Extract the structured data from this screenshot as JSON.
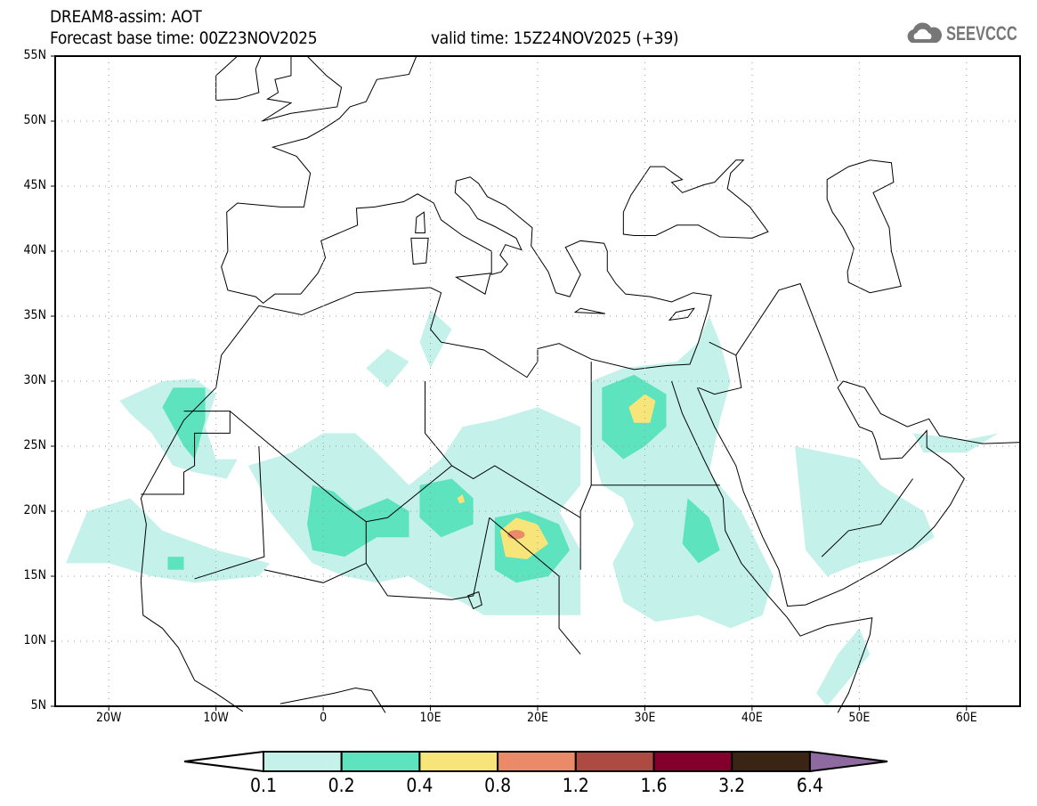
{
  "header": {
    "model_title": "DREAM8-assim: AOT",
    "base_time": "Forecast base time: 00Z23NOV2025",
    "valid_time": "valid time: 15Z24NOV2025 (+39)",
    "logo_text": "SEEVCCC"
  },
  "axes": {
    "lat_labels": [
      "55N",
      "50N",
      "45N",
      "40N",
      "35N",
      "30N",
      "25N",
      "20N",
      "15N",
      "10N",
      "5N"
    ],
    "lon_labels": [
      "20W",
      "10W",
      "0",
      "10E",
      "20E",
      "30E",
      "40E",
      "50E",
      "60E"
    ]
  },
  "colorbar": {
    "labels": [
      "0.1",
      "0.2",
      "0.4",
      "0.8",
      "1.2",
      "1.6",
      "3.2",
      "6.4"
    ],
    "colors": [
      "#ffffff",
      "#c4f2ea",
      "#5de3bd",
      "#f7e57a",
      "#ea8a68",
      "#ad4b42",
      "#83002c",
      "#3a2414",
      "#8f6aa0"
    ]
  }
}
